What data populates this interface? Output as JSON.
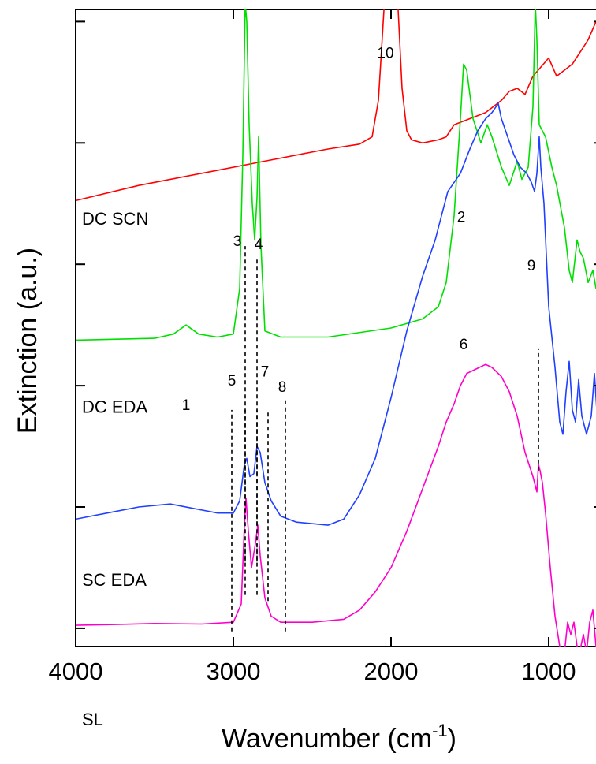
{
  "chart_data": {
    "type": "line",
    "xlabel": "Wavenumber (cm",
    "xlabel_sup": "-1",
    "xlabel_end": ")",
    "ylabel": "Extinction (a.u.)",
    "xlim": [
      4000,
      650
    ],
    "x_ticks": [
      4000,
      3000,
      2000,
      1000
    ],
    "x_tick_labels": [
      "4000",
      "3000",
      "2000",
      "1000"
    ],
    "ylim": [
      0,
      10.5
    ],
    "y_ticks": [
      0.3,
      2.3,
      4.3,
      6.3,
      8.3,
      10.3
    ],
    "grid": false,
    "series": [
      {
        "name": "DC SCN",
        "color": "#ff0000",
        "points": [
          [
            4000,
            1.15
          ],
          [
            3600,
            1.4
          ],
          [
            3200,
            1.6
          ],
          [
            2800,
            1.8
          ],
          [
            2400,
            2.0
          ],
          [
            2200,
            2.08
          ],
          [
            2120,
            2.2
          ],
          [
            2080,
            2.8
          ],
          [
            2040,
            4.5
          ],
          [
            2020,
            6.0
          ],
          [
            2005,
            6.6
          ],
          [
            1990,
            6.55
          ],
          [
            1975,
            6.0
          ],
          [
            1955,
            4.3
          ],
          [
            1930,
            3.0
          ],
          [
            1900,
            2.3
          ],
          [
            1870,
            2.15
          ],
          [
            1800,
            2.1
          ],
          [
            1700,
            2.15
          ],
          [
            1650,
            2.2
          ],
          [
            1600,
            2.4
          ],
          [
            1500,
            2.5
          ],
          [
            1400,
            2.6
          ],
          [
            1300,
            2.8
          ],
          [
            1250,
            2.95
          ],
          [
            1200,
            3.0
          ],
          [
            1150,
            2.9
          ],
          [
            1100,
            3.2
          ],
          [
            1050,
            3.35
          ],
          [
            1000,
            3.5
          ],
          [
            950,
            3.2
          ],
          [
            900,
            3.3
          ],
          [
            850,
            3.4
          ],
          [
            800,
            3.6
          ],
          [
            750,
            3.8
          ],
          [
            700,
            4.1
          ],
          [
            660,
            4.2
          ]
        ],
        "label": "DC SCN",
        "label_x": 3960,
        "label_y": 0.75
      },
      {
        "name": "DC EDA",
        "color": "#00e000",
        "points": [
          [
            4000,
            0.95
          ],
          [
            3500,
            0.98
          ],
          [
            3380,
            1.05
          ],
          [
            3300,
            1.2
          ],
          [
            3220,
            1.05
          ],
          [
            3100,
            1.0
          ],
          [
            3000,
            1.05
          ],
          [
            2960,
            1.8
          ],
          [
            2940,
            4.0
          ],
          [
            2925,
            6.5
          ],
          [
            2915,
            6.2
          ],
          [
            2900,
            4.5
          ],
          [
            2880,
            3.2
          ],
          [
            2865,
            2.6
          ],
          [
            2850,
            3.3
          ],
          [
            2840,
            4.3
          ],
          [
            2825,
            2.5
          ],
          [
            2800,
            1.1
          ],
          [
            2700,
            1.0
          ],
          [
            2400,
            1.0
          ],
          [
            2000,
            1.15
          ],
          [
            1800,
            1.3
          ],
          [
            1700,
            1.5
          ],
          [
            1650,
            1.9
          ],
          [
            1600,
            3.0
          ],
          [
            1560,
            4.6
          ],
          [
            1540,
            5.5
          ],
          [
            1520,
            5.4
          ],
          [
            1480,
            4.6
          ],
          [
            1430,
            4.2
          ],
          [
            1390,
            4.5
          ],
          [
            1360,
            4.3
          ],
          [
            1300,
            3.8
          ],
          [
            1250,
            3.5
          ],
          [
            1200,
            3.9
          ],
          [
            1170,
            3.6
          ],
          [
            1130,
            3.8
          ],
          [
            1100,
            4.8
          ],
          [
            1085,
            6.5
          ],
          [
            1075,
            5.9
          ],
          [
            1060,
            4.5
          ],
          [
            1020,
            4.3
          ],
          [
            980,
            3.8
          ],
          [
            950,
            3.5
          ],
          [
            900,
            2.8
          ],
          [
            870,
            2.1
          ],
          [
            850,
            1.9
          ],
          [
            820,
            2.6
          ],
          [
            800,
            2.4
          ],
          [
            780,
            2.3
          ],
          [
            750,
            1.9
          ],
          [
            720,
            2.1
          ],
          [
            700,
            1.8
          ],
          [
            670,
            1.7
          ],
          [
            655,
            1.9
          ]
        ],
        "label": "DC EDA",
        "label_x": 3960,
        "label_y": -0.25
      },
      {
        "name": "SC EDA",
        "color": "#2040ff",
        "points": [
          [
            4000,
            0.0
          ],
          [
            3800,
            0.1
          ],
          [
            3600,
            0.2
          ],
          [
            3400,
            0.25
          ],
          [
            3200,
            0.15
          ],
          [
            3100,
            0.1
          ],
          [
            3000,
            0.1
          ],
          [
            2960,
            0.3
          ],
          [
            2930,
            0.9
          ],
          [
            2915,
            1.0
          ],
          [
            2895,
            0.7
          ],
          [
            2870,
            0.75
          ],
          [
            2850,
            1.2
          ],
          [
            2830,
            1.1
          ],
          [
            2800,
            0.6
          ],
          [
            2760,
            0.3
          ],
          [
            2700,
            0.05
          ],
          [
            2600,
            -0.05
          ],
          [
            2400,
            -0.1
          ],
          [
            2300,
            0.0
          ],
          [
            2200,
            0.4
          ],
          [
            2100,
            1.0
          ],
          [
            2000,
            2.0
          ],
          [
            1900,
            3.1
          ],
          [
            1800,
            4.0
          ],
          [
            1720,
            4.6
          ],
          [
            1680,
            5.0
          ],
          [
            1640,
            5.4
          ],
          [
            1560,
            5.7
          ],
          [
            1500,
            6.1
          ],
          [
            1450,
            6.4
          ],
          [
            1400,
            6.6
          ],
          [
            1360,
            6.7
          ],
          [
            1320,
            6.85
          ],
          [
            1300,
            6.6
          ],
          [
            1260,
            6.3
          ],
          [
            1220,
            6.0
          ],
          [
            1180,
            5.8
          ],
          [
            1140,
            5.7
          ],
          [
            1110,
            5.55
          ],
          [
            1090,
            5.4
          ],
          [
            1075,
            5.7
          ],
          [
            1060,
            6.3
          ],
          [
            1050,
            5.8
          ],
          [
            1030,
            5.2
          ],
          [
            1000,
            3.5
          ],
          [
            960,
            2.5
          ],
          [
            930,
            1.6
          ],
          [
            910,
            1.4
          ],
          [
            890,
            2.1
          ],
          [
            870,
            2.6
          ],
          [
            850,
            1.8
          ],
          [
            830,
            1.6
          ],
          [
            810,
            2.3
          ],
          [
            790,
            1.7
          ],
          [
            760,
            1.4
          ],
          [
            730,
            1.7
          ],
          [
            710,
            2.4
          ],
          [
            690,
            1.6
          ],
          [
            670,
            1.5
          ],
          [
            655,
            2.0
          ]
        ],
        "label": "SC EDA",
        "label_x": 3960,
        "label_y": -1.1
      },
      {
        "name": "SL",
        "color": "#ff00cc",
        "points": [
          [
            4000,
            0.35
          ],
          [
            3800,
            0.36
          ],
          [
            3500,
            0.38
          ],
          [
            3200,
            0.37
          ],
          [
            3000,
            0.4
          ],
          [
            2950,
            0.7
          ],
          [
            2930,
            2.0
          ],
          [
            2920,
            2.45
          ],
          [
            2905,
            1.9
          ],
          [
            2885,
            1.3
          ],
          [
            2860,
            1.7
          ],
          [
            2845,
            2.0
          ],
          [
            2830,
            1.5
          ],
          [
            2800,
            0.8
          ],
          [
            2760,
            0.5
          ],
          [
            2700,
            0.4
          ],
          [
            2500,
            0.4
          ],
          [
            2300,
            0.45
          ],
          [
            2200,
            0.6
          ],
          [
            2100,
            0.9
          ],
          [
            2000,
            1.3
          ],
          [
            1900,
            1.9
          ],
          [
            1800,
            2.6
          ],
          [
            1700,
            3.3
          ],
          [
            1650,
            3.7
          ],
          [
            1600,
            4.0
          ],
          [
            1560,
            4.3
          ],
          [
            1520,
            4.5
          ],
          [
            1480,
            4.55
          ],
          [
            1440,
            4.6
          ],
          [
            1400,
            4.65
          ],
          [
            1360,
            4.6
          ],
          [
            1300,
            4.45
          ],
          [
            1250,
            4.2
          ],
          [
            1200,
            3.8
          ],
          [
            1150,
            3.2
          ],
          [
            1100,
            2.8
          ],
          [
            1075,
            2.55
          ],
          [
            1065,
            3.0
          ],
          [
            1055,
            2.9
          ],
          [
            1040,
            2.7
          ],
          [
            1020,
            2.2
          ],
          [
            990,
            1.3
          ],
          [
            960,
            0.5
          ],
          [
            930,
            0.0
          ],
          [
            900,
            -0.1
          ],
          [
            880,
            0.4
          ],
          [
            860,
            0.2
          ],
          [
            840,
            0.4
          ],
          [
            820,
            0.0
          ],
          [
            800,
            -0.05
          ],
          [
            780,
            0.2
          ],
          [
            760,
            -0.1
          ],
          [
            740,
            0.4
          ],
          [
            720,
            0.6
          ],
          [
            700,
            0.0
          ],
          [
            680,
            0.5
          ],
          [
            660,
            0.3
          ]
        ],
        "label": "SL",
        "label_x": 3960,
        "label_y": -1.3
      }
    ],
    "peak_labels": [
      {
        "text": "10",
        "x": 2035,
        "y": 9.7
      },
      {
        "text": "2",
        "x": 1555,
        "y": 7.0
      },
      {
        "text": "3",
        "x": 2975,
        "y": 6.6
      },
      {
        "text": "4",
        "x": 2840,
        "y": 6.55
      },
      {
        "text": "1",
        "x": 3300,
        "y": 3.9
      },
      {
        "text": "9",
        "x": 1110,
        "y": 6.2
      },
      {
        "text": "5",
        "x": 3010,
        "y": 4.3
      },
      {
        "text": "7",
        "x": 2800,
        "y": 4.45
      },
      {
        "text": "8",
        "x": 2690,
        "y": 4.2
      },
      {
        "text": "6",
        "x": 1540,
        "y": 4.9
      }
    ],
    "dashed_lines": [
      {
        "x": 2925,
        "y1": 1.4,
        "y2": 6.6
      },
      {
        "x": 2850,
        "y1": 1.4,
        "y2": 6.4
      },
      {
        "x": 2925,
        "y1": 0.85,
        "y2": 1.7
      },
      {
        "x": 2850,
        "y1": 0.85,
        "y2": 1.7
      },
      {
        "x": 3010,
        "y1": 0.25,
        "y2": 3.9
      },
      {
        "x": 2925,
        "y1": 2.2,
        "y2": 3.9
      },
      {
        "x": 2850,
        "y1": 2.0,
        "y2": 3.9
      },
      {
        "x": 2780,
        "y1": 0.75,
        "y2": 3.9
      },
      {
        "x": 2670,
        "y1": 0.25,
        "y2": 4.1
      },
      {
        "x": 1065,
        "y1": 2.9,
        "y2": 4.9
      }
    ]
  }
}
